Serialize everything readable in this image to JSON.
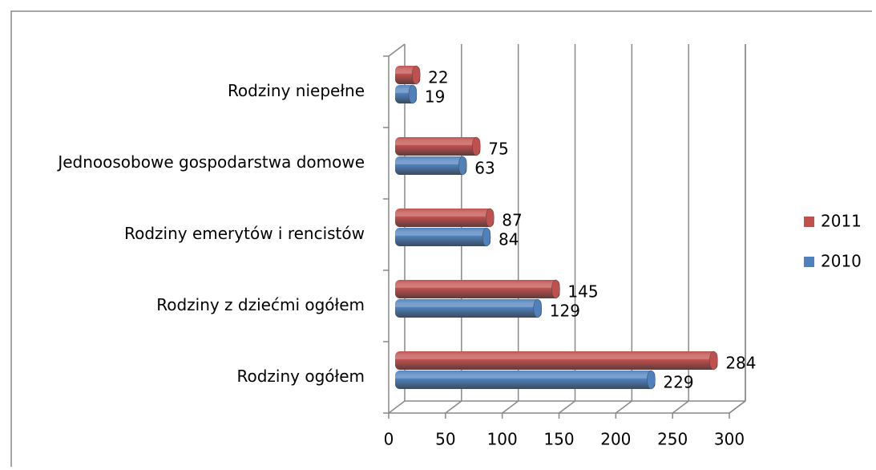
{
  "chart_data": {
    "type": "bar",
    "orientation": "horizontal",
    "categories": [
      "Rodziny ogółem",
      "Rodziny z dziećmi ogółem",
      "Rodziny emerytów i rencistów",
      "Jednoosobowe gospodarstwa domowe",
      "Rodziny niepełne"
    ],
    "series": [
      {
        "name": "2011",
        "color": "#c0504d",
        "values": [
          284,
          145,
          87,
          75,
          22
        ]
      },
      {
        "name": "2010",
        "color": "#4f81bd",
        "values": [
          229,
          129,
          84,
          63,
          19
        ]
      }
    ],
    "xlim": [
      0,
      300
    ],
    "xticks": [
      0,
      50,
      100,
      150,
      200,
      250,
      300
    ],
    "grid": true,
    "legend": "right"
  }
}
